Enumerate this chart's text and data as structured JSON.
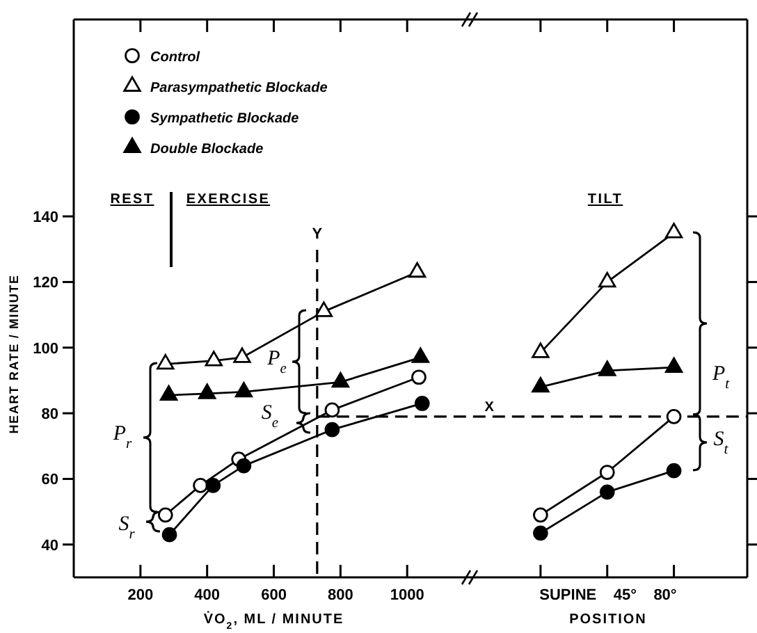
{
  "chart_data": {
    "type": "line",
    "xlabel": "V̇O$_{2}$, ML / MINUTE",
    "ylabel": "HEART RATE / MINUTE",
    "xlim": [
      0,
      2020
    ],
    "ylim": [
      30,
      200
    ],
    "xticks": [
      200,
      400,
      600,
      800,
      1000,
      {
        "value": 1400,
        "label": null
      },
      {
        "value": 1600,
        "label": null
      },
      {
        "value": 1800,
        "label": null
      }
    ],
    "yticks": [
      40,
      60,
      80,
      100,
      120,
      140
    ],
    "legend": "top left",
    "series": [
      {
        "name": "Control",
        "color": "#000000",
        "colors": [
          "#ffffff",
          "#ffffff",
          "#ffffff",
          "#ffffff",
          "#ffffff",
          null,
          "#ffffff",
          "#ffffff",
          "#ffffff"
        ],
        "marker": "circle",
        "x": [
          275,
          380,
          495,
          775,
          1035,
          1200,
          1400,
          1600,
          1800
        ],
        "values": [
          49,
          58,
          66,
          81,
          91,
          null,
          49,
          62,
          79
        ]
      },
      {
        "name": "Parasympathetic Blockade",
        "color": "#000000",
        "colors": [
          "#ffffff",
          "#ffffff",
          "#ffffff",
          "#ffffff",
          "#ffffff",
          null,
          "#ffffff",
          "#ffffff",
          "#ffffff"
        ],
        "marker": "triangle",
        "x": [
          275,
          420,
          505,
          750,
          1030,
          1200,
          1400,
          1600,
          1800
        ],
        "values": [
          95,
          96,
          97,
          111,
          123,
          null,
          98.5,
          120,
          135
        ]
      },
      {
        "name": "Sympathetic Blockade",
        "color": "#000000",
        "marker": "circle",
        "x": [
          287,
          418,
          510,
          775,
          1045,
          1200,
          1400,
          1600,
          1800
        ],
        "values": [
          43,
          58,
          64,
          75,
          83,
          null,
          43.5,
          56,
          62.5
        ]
      },
      {
        "name": "Double Blockade",
        "color": "#000000",
        "marker": "triangle",
        "x": [
          285,
          400,
          510,
          800,
          1040,
          1200,
          1400,
          1600,
          1800
        ],
        "values": [
          85.5,
          86,
          86.5,
          89.5,
          97,
          null,
          88,
          93,
          94
        ]
      }
    ],
    "ref_lines": [
      {
        "axis": "x",
        "value": 730,
        "label": "Y",
        "line_style": "dashed"
      },
      {
        "axis": "y",
        "value": 79,
        "label": "X",
        "line_style": "dashed"
      }
    ],
    "annotations": [
      "REST",
      "EXERCISE",
      "P$_{r}$",
      "S$_{r}$",
      "P$_{e}$",
      "S$_{e}$",
      "TILT",
      "P$_{t}$",
      "S$_{t}$",
      "POSITION",
      "SUPINE    45°    80°"
    ]
  }
}
